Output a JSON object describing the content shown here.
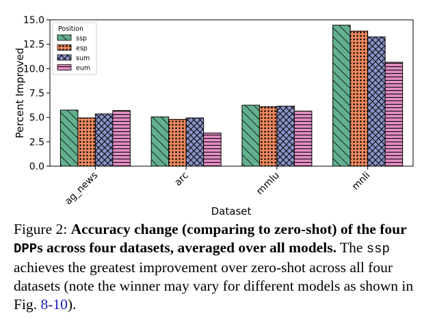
{
  "chart_data": {
    "type": "bar",
    "title": "",
    "xlabel": "Dataset",
    "ylabel": "Percent Improved",
    "categories": [
      "ag_news",
      "arc",
      "mmlu",
      "mnli"
    ],
    "ylim": [
      0,
      15
    ],
    "yticks": [
      "0.0",
      "2.5",
      "5.0",
      "7.5",
      "10.0",
      "12.5",
      "15.0"
    ],
    "grid": false,
    "legend": {
      "title": "Position",
      "placement": "top-left"
    },
    "series": [
      {
        "name": "ssp",
        "values": [
          5.75,
          5.05,
          6.25,
          14.45
        ],
        "color": "#63b08f",
        "pattern": "diagonal-hatch"
      },
      {
        "name": "esp",
        "values": [
          4.95,
          4.8,
          6.1,
          13.85
        ],
        "color": "#f08a5e",
        "pattern": "dots"
      },
      {
        "name": "sum",
        "values": [
          5.35,
          4.95,
          6.15,
          13.25
        ],
        "color": "#8a93c8",
        "pattern": "crosshatch"
      },
      {
        "name": "eum",
        "values": [
          5.7,
          3.4,
          5.65,
          10.65
        ],
        "color": "#df8bc0",
        "pattern": "horizontal-lines"
      }
    ]
  },
  "caption": {
    "label": "Figure 2: ",
    "bold_1": "Accuracy change (comparing to zero-shot) of the four ",
    "bold_mono": "DPP",
    "bold_2": "s across four datasets, averaged over all models.",
    "text_1": " The ",
    "mono": "ssp",
    "text_2": " achieves the greatest improvement over zero-shot across all four datasets (note the winner may vary for different models as shown in Fig. ",
    "link": "8-10",
    "text_3": ")."
  }
}
